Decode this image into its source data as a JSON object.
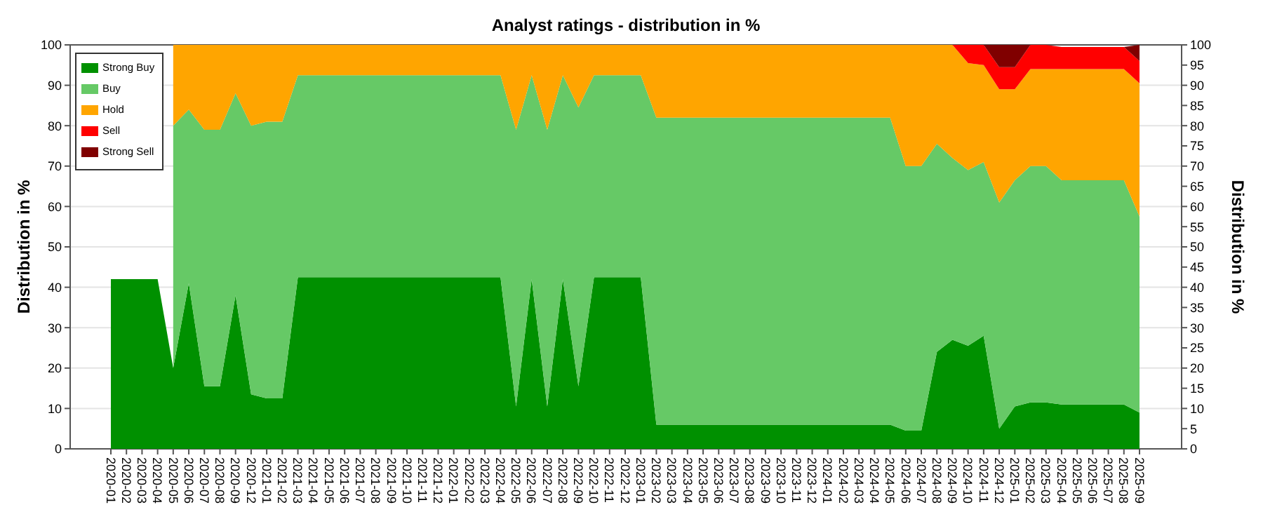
{
  "chart_data": {
    "type": "area",
    "stacked": true,
    "title": "Analyst ratings - distribution in %",
    "ylabel": "Distribution in %",
    "y2label": "Distribution in %",
    "categories": [
      "2020-01",
      "2020-02",
      "2020-03",
      "2020-04",
      "2020-05",
      "2020-06",
      "2020-07",
      "2020-08",
      "2020-09",
      "2020-12",
      "2021-01",
      "2021-02",
      "2021-03",
      "2021-04",
      "2021-05",
      "2021-06",
      "2021-07",
      "2021-08",
      "2021-09",
      "2021-10",
      "2021-11",
      "2021-12",
      "2022-01",
      "2022-02",
      "2022-03",
      "2022-04",
      "2022-05",
      "2022-06",
      "2022-07",
      "2022-08",
      "2022-09",
      "2022-10",
      "2022-11",
      "2022-12",
      "2023-01",
      "2023-02",
      "2023-03",
      "2023-04",
      "2023-05",
      "2023-06",
      "2023-07",
      "2023-08",
      "2023-09",
      "2023-10",
      "2023-11",
      "2023-12",
      "2024-01",
      "2024-02",
      "2024-03",
      "2024-04",
      "2024-05",
      "2024-06",
      "2024-07",
      "2024-08",
      "2024-09",
      "2024-10",
      "2024-11",
      "2024-12",
      "2025-01",
      "2025-02",
      "2025-03",
      "2025-04",
      "2025-05",
      "2025-06",
      "2025-07",
      "2025-08",
      "2025-09"
    ],
    "series": [
      {
        "name": "Strong Buy",
        "color": "#009000",
        "values": [
          42,
          42,
          42,
          42,
          20,
          41,
          15.5,
          15.5,
          38,
          13.5,
          12.5,
          12.5,
          42.5,
          42.5,
          42.5,
          42.5,
          42.5,
          42.5,
          42.5,
          42.5,
          42.5,
          42.5,
          42.5,
          42.5,
          42.5,
          42.5,
          10.5,
          42,
          10.5,
          42,
          15.5,
          42.5,
          42.5,
          42.5,
          42.5,
          6,
          6,
          6,
          6,
          6,
          6,
          6,
          6,
          6,
          6,
          6,
          6,
          6,
          6,
          6,
          6,
          4.5,
          4.5,
          24,
          27,
          25.5,
          28,
          5,
          10.5,
          11.5,
          11.5,
          11,
          11,
          11,
          11,
          11,
          9
        ]
      },
      {
        "name": "Buy",
        "color": "#66c966",
        "values": [
          null,
          null,
          null,
          null,
          60,
          43,
          63.5,
          63.5,
          50,
          66.5,
          68.5,
          68.5,
          50,
          50,
          50,
          50,
          50,
          50,
          50,
          50,
          50,
          50,
          50,
          50,
          50,
          50,
          68.5,
          50.5,
          68.5,
          50.5,
          69,
          50,
          50,
          50,
          50,
          76,
          76,
          76,
          76,
          76,
          76,
          76,
          76,
          76,
          76,
          76,
          76,
          76,
          76,
          76,
          76,
          65.5,
          65.5,
          51.5,
          45,
          43.5,
          43,
          56,
          56,
          58.5,
          58.5,
          55.5,
          55.5,
          55.5,
          55.5,
          55.5,
          48.5
        ]
      },
      {
        "name": "Hold",
        "color": "#ffa500",
        "values": [
          null,
          null,
          null,
          null,
          20,
          16,
          21,
          21,
          12,
          20,
          19,
          19,
          7.5,
          7.5,
          7.5,
          7.5,
          7.5,
          7.5,
          7.5,
          7.5,
          7.5,
          7.5,
          7.5,
          7.5,
          7.5,
          7.5,
          21,
          7.5,
          21,
          7.5,
          15.5,
          7.5,
          7.5,
          7.5,
          7.5,
          18,
          18,
          18,
          18,
          18,
          18,
          18,
          18,
          18,
          18,
          18,
          18,
          18,
          18,
          18,
          18,
          30,
          30,
          24.5,
          28,
          26.5,
          24,
          28,
          22.5,
          24,
          24,
          27.5,
          27.5,
          27.5,
          27.5,
          27.5,
          33
        ]
      },
      {
        "name": "Sell",
        "color": "#ff0000",
        "values": [
          0,
          0,
          0,
          0,
          0,
          0,
          0,
          0,
          0,
          0,
          0,
          0,
          0,
          0,
          0,
          0,
          0,
          0,
          0,
          0,
          0,
          0,
          0,
          0,
          0,
          0,
          0,
          0,
          0,
          0,
          0,
          0,
          0,
          0,
          0,
          0,
          0,
          0,
          0,
          0,
          0,
          0,
          0,
          0,
          0,
          0,
          0,
          0,
          0,
          0,
          0,
          0,
          0,
          0,
          0,
          4.5,
          5,
          5.5,
          5.5,
          6,
          6,
          5.5,
          5.5,
          5.5,
          5.5,
          5.5,
          5.5
        ]
      },
      {
        "name": "Strong Sell",
        "color": "#800000",
        "values": [
          null,
          null,
          null,
          null,
          null,
          null,
          null,
          null,
          null,
          null,
          null,
          null,
          null,
          null,
          null,
          null,
          null,
          null,
          null,
          null,
          null,
          null,
          null,
          null,
          null,
          null,
          null,
          null,
          null,
          null,
          null,
          null,
          null,
          null,
          null,
          null,
          null,
          null,
          null,
          null,
          null,
          null,
          null,
          null,
          null,
          null,
          null,
          null,
          null,
          null,
          null,
          null,
          null,
          null,
          null,
          null,
          0,
          5.5,
          5.5,
          0,
          null,
          null,
          null,
          null,
          null,
          0,
          4
        ]
      }
    ],
    "ylim": [
      0,
      100
    ],
    "yticks": [
      0,
      10,
      20,
      30,
      40,
      50,
      60,
      70,
      80,
      90,
      100
    ],
    "y2lim": [
      0,
      100
    ],
    "y2ticks": [
      0,
      5,
      10,
      15,
      20,
      25,
      30,
      35,
      40,
      45,
      50,
      55,
      60,
      65,
      70,
      75,
      80,
      85,
      90,
      95,
      100
    ],
    "grid": "y",
    "legend": "top left"
  }
}
